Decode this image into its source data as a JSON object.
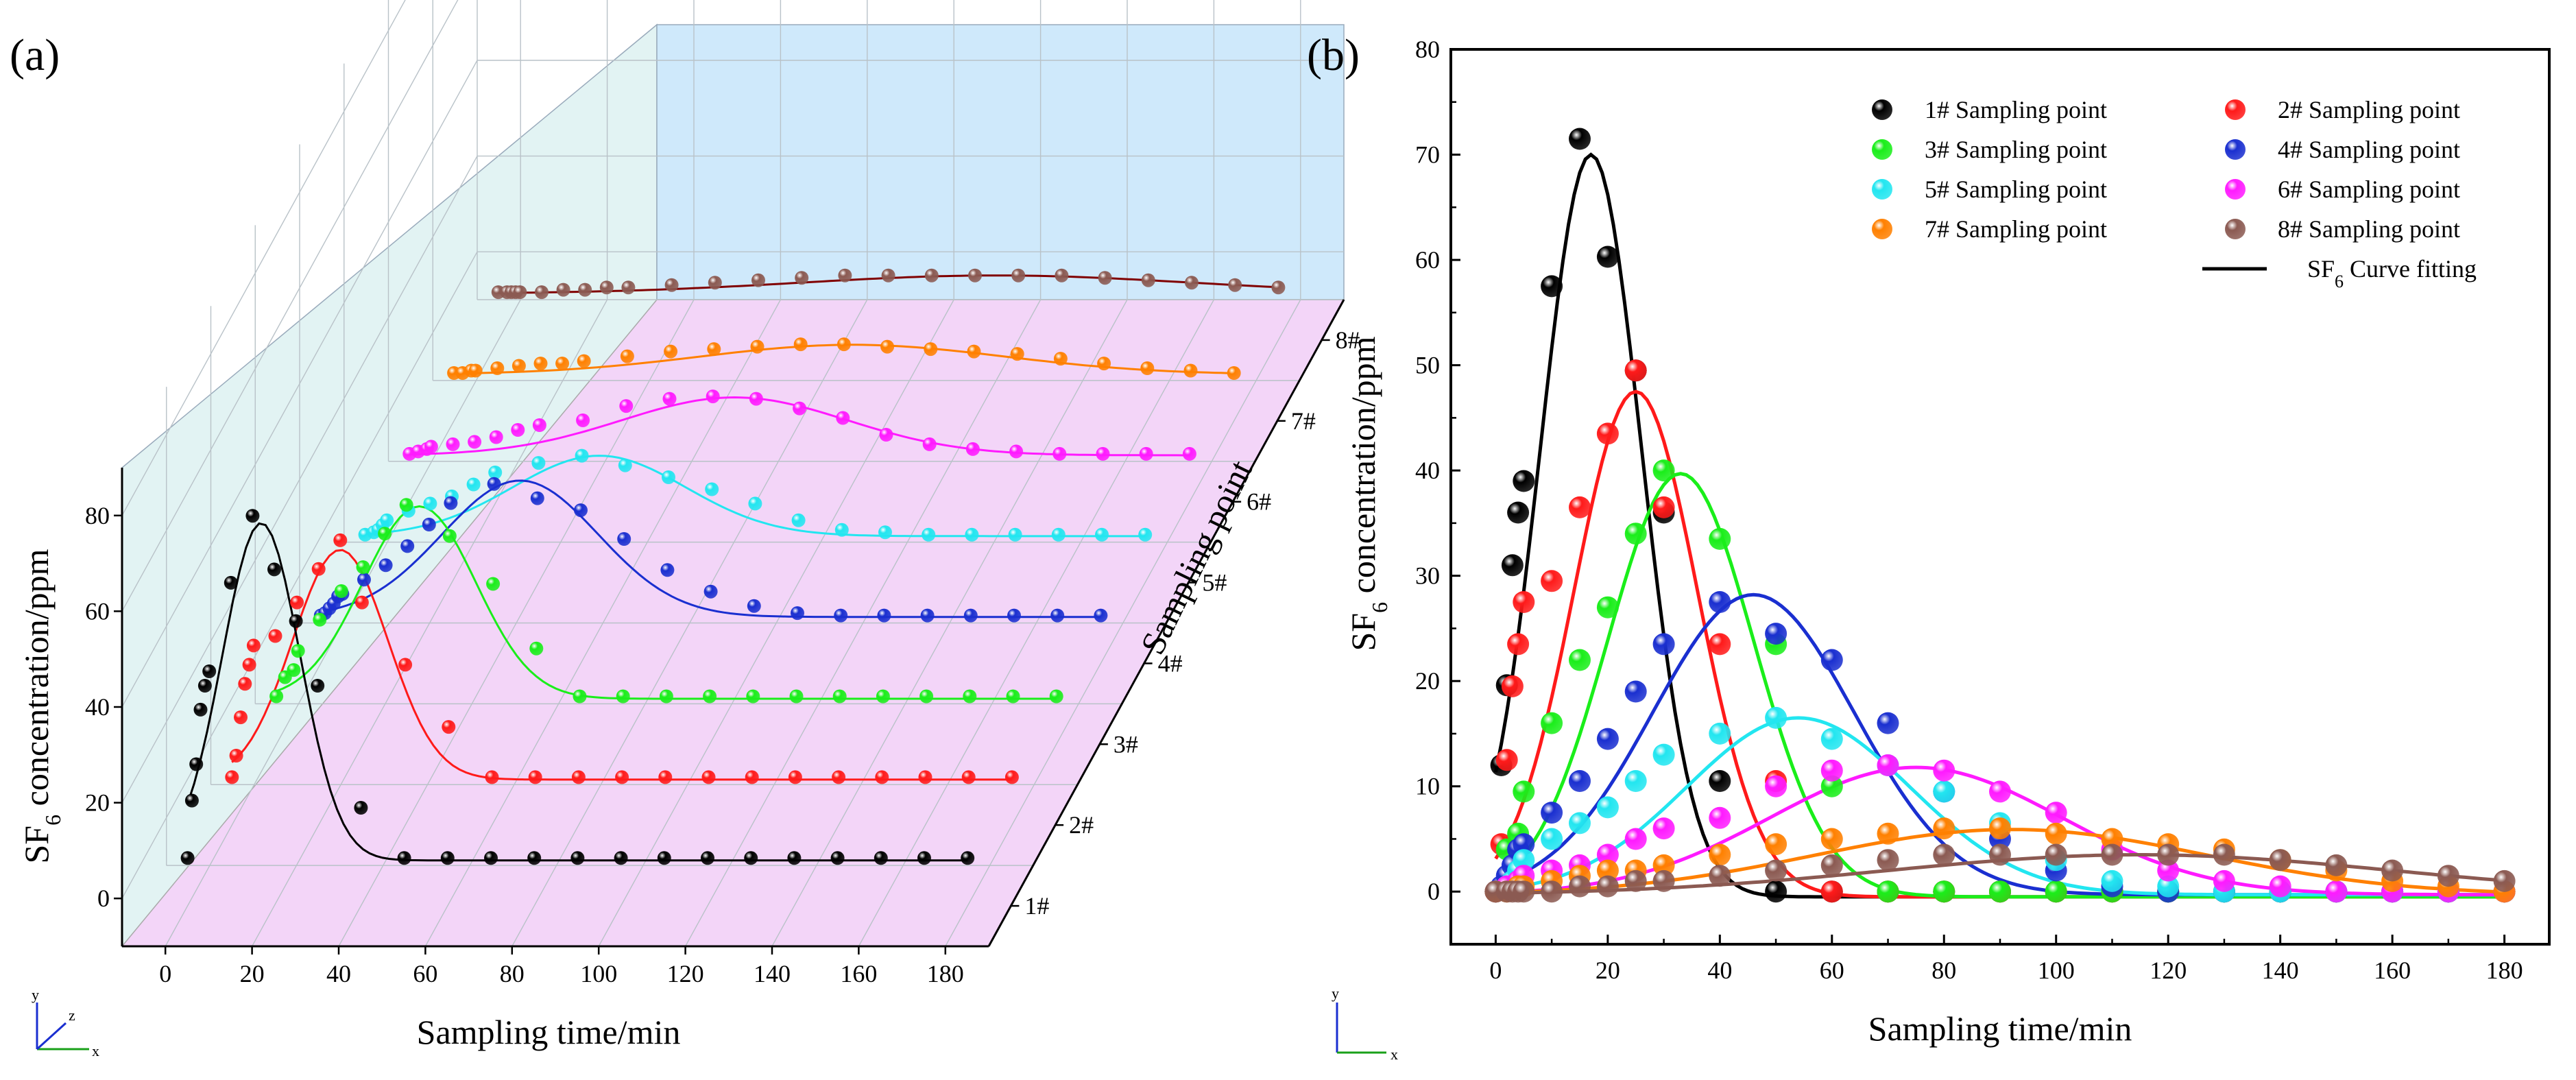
{
  "figure": {
    "panel_a_label": "(a)",
    "panel_b_label": "(b)"
  },
  "colors": {
    "series": [
      "#000000",
      "#ff1a1a",
      "#1aee1a",
      "#1a2fd0",
      "#22e6f0",
      "#ff1aff",
      "#ff8000",
      "#8b5a52"
    ],
    "fit_3d": [
      "#000000",
      "#ff1a1a",
      "#1aee1a",
      "#1a2fd0",
      "#22e6f0",
      "#ff1aff",
      "#ff8000",
      "#800000"
    ],
    "wall_left": "#e2f3f3",
    "wall_back": "#cfe9fb",
    "floor": "#f3d5f8"
  },
  "chart_data": [
    {
      "id": "a",
      "type": "scatter",
      "projection": "3d",
      "title": "",
      "xlabel": "Sampling time/min",
      "ylabel_parts": [
        "SF",
        "6",
        " concentration/ppm"
      ],
      "zlabel": "Sampling point",
      "xlim": [
        -10,
        190
      ],
      "ylim": [
        -10,
        90
      ],
      "xticks": [
        "0",
        "20",
        "40",
        "60",
        "80",
        "100",
        "120",
        "140",
        "160",
        "180"
      ],
      "yticks": [
        "0",
        "20",
        "40",
        "60",
        "80"
      ],
      "z_categories": [
        "1#",
        "2#",
        "3#",
        "4#",
        "5#",
        "6#",
        "7#",
        "8#"
      ],
      "axis_icon_labels": [
        "y",
        "z",
        "x"
      ],
      "series": [
        {
          "name": "1#",
          "x": [
            0,
            1,
            2,
            3,
            4,
            5,
            10,
            15,
            20,
            25,
            30,
            40,
            50,
            60,
            70,
            80,
            90,
            100,
            110,
            120,
            130,
            140,
            150,
            160,
            170,
            180
          ],
          "y": [
            0,
            12,
            19.6,
            31,
            36,
            39,
            57.5,
            71.5,
            60.3,
            49.5,
            36,
            10.5,
            0,
            0,
            0,
            0,
            0,
            0,
            0,
            0,
            0,
            0,
            0,
            0,
            0,
            0
          ],
          "fit": {
            "peak": 70,
            "center": 17,
            "width": 9,
            "base": -0.5
          }
        },
        {
          "name": "2#",
          "x": [
            0,
            1,
            2,
            3,
            4,
            5,
            10,
            15,
            20,
            25,
            30,
            40,
            50,
            60,
            70,
            80,
            90,
            100,
            110,
            120,
            130,
            140,
            150,
            160,
            170,
            180
          ],
          "y": [
            0,
            4.5,
            12.5,
            19.5,
            23.5,
            27.5,
            29.5,
            36.5,
            43.5,
            49.5,
            36.5,
            23.5,
            10.5,
            0,
            0,
            0,
            0,
            0,
            0,
            0,
            0,
            0,
            0,
            0,
            0,
            0
          ],
          "fit": {
            "peak": 47.5,
            "center": 25,
            "width": 11,
            "base": -0.5
          }
        },
        {
          "name": "3#",
          "x": [
            0,
            2,
            4,
            5,
            10,
            15,
            20,
            25,
            30,
            40,
            50,
            60,
            70,
            80,
            90,
            100,
            110,
            120,
            130,
            140,
            150,
            160,
            170,
            180
          ],
          "y": [
            0,
            4,
            5.5,
            9.5,
            16,
            22,
            27,
            34,
            40,
            33.5,
            23.5,
            10,
            0,
            0,
            0,
            0,
            0,
            0,
            0,
            0,
            0,
            0,
            0,
            0
          ],
          "fit": {
            "peak": 39.7,
            "center": 33,
            "width": 13,
            "base": -0.5
          }
        },
        {
          "name": "4#",
          "x": [
            0,
            1,
            2,
            3,
            4,
            5,
            10,
            15,
            20,
            25,
            30,
            40,
            50,
            60,
            70,
            80,
            90,
            100,
            110,
            120,
            130,
            140,
            150,
            160,
            170,
            180
          ],
          "y": [
            0,
            0.5,
            1.5,
            2.5,
            4,
            4.5,
            7.5,
            10.5,
            14.5,
            19,
            23.5,
            27.5,
            24.5,
            22,
            16,
            9.5,
            5,
            2,
            0.5,
            0,
            0,
            0,
            0,
            0,
            0,
            0
          ],
          "fit": {
            "peak": 28.2,
            "center": 46,
            "width": 18,
            "base": -0.3
          }
        },
        {
          "name": "5#",
          "x": [
            0,
            2,
            3,
            4,
            5,
            10,
            15,
            20,
            25,
            30,
            40,
            50,
            60,
            70,
            80,
            90,
            100,
            110,
            120,
            130,
            140,
            150,
            160,
            170,
            180
          ],
          "y": [
            0,
            0.5,
            1,
            2,
            3,
            5,
            6.5,
            8,
            10.5,
            13,
            15,
            16.5,
            14.5,
            12,
            9.5,
            6.5,
            3,
            1,
            0.5,
            0,
            0,
            0,
            0,
            0,
            0
          ],
          "fit": {
            "peak": 16.5,
            "center": 54,
            "width": 20,
            "base": -0.3
          }
        },
        {
          "name": "6#",
          "x": [
            0,
            2,
            4,
            5,
            10,
            15,
            20,
            25,
            30,
            40,
            50,
            60,
            70,
            80,
            90,
            100,
            110,
            120,
            130,
            140,
            150,
            160,
            170,
            180
          ],
          "y": [
            0,
            0.5,
            1,
            1.5,
            2,
            2.5,
            3.5,
            5,
            6,
            7,
            10,
            11.5,
            12,
            11.5,
            9.5,
            7.5,
            4,
            2,
            1,
            0.5,
            0,
            0,
            0,
            0
          ],
          "fit": {
            "peak": 11.8,
            "center": 75,
            "width": 26,
            "base": -0.3
          }
        },
        {
          "name": "7#",
          "x": [
            0,
            2,
            4,
            5,
            10,
            15,
            20,
            25,
            30,
            40,
            50,
            60,
            70,
            80,
            90,
            100,
            110,
            120,
            130,
            140,
            150,
            160,
            170,
            180
          ],
          "y": [
            0,
            0,
            0.5,
            0.5,
            1,
            1.5,
            2,
            2,
            2.5,
            3.5,
            4.5,
            5,
            5.5,
            6,
            6,
            5.5,
            5,
            4.5,
            4,
            3,
            2,
            1,
            0.5,
            0
          ],
          "fit": {
            "peak": 5.9,
            "center": 92,
            "width": 35,
            "base": -0.3
          }
        },
        {
          "name": "8#",
          "x": [
            0,
            2,
            3,
            4,
            5,
            10,
            15,
            20,
            25,
            30,
            40,
            50,
            60,
            70,
            80,
            90,
            100,
            110,
            120,
            130,
            140,
            150,
            160,
            170,
            180
          ],
          "y": [
            0,
            0,
            0,
            0,
            0,
            0,
            0.5,
            0.5,
            1,
            1,
            1.5,
            2,
            2.5,
            3,
            3.5,
            3.5,
            3.5,
            3.5,
            3.5,
            3.5,
            3,
            2.5,
            2,
            1.5,
            1
          ],
          "fit": {
            "peak": 3.5,
            "center": 115,
            "width": 45,
            "base": -0.3
          }
        }
      ]
    },
    {
      "id": "b",
      "type": "scatter",
      "title": "",
      "xlabel": "Sampling time/min",
      "ylabel_parts": [
        "SF",
        "6",
        " concentration/ppm"
      ],
      "xlim": [
        -8,
        188
      ],
      "ylim": [
        -5,
        80
      ],
      "xticks": [
        "0",
        "20",
        "40",
        "60",
        "80",
        "100",
        "120",
        "140",
        "160",
        "180"
      ],
      "yticks": [
        "0",
        "10",
        "20",
        "30",
        "40",
        "50",
        "60",
        "70",
        "80"
      ],
      "axis_icon_labels": [
        "y",
        "x"
      ],
      "legend": {
        "placement": "top-right",
        "entries": [
          "1# Sampling point",
          "2# Sampling point",
          "3# Sampling point",
          "4# Sampling point",
          "5# Sampling point",
          "6# Sampling point",
          "7# Sampling point",
          "8# Sampling point"
        ],
        "fit_label_parts": [
          "SF",
          "6",
          " Curve fitting"
        ]
      },
      "series_ref": "a"
    }
  ]
}
